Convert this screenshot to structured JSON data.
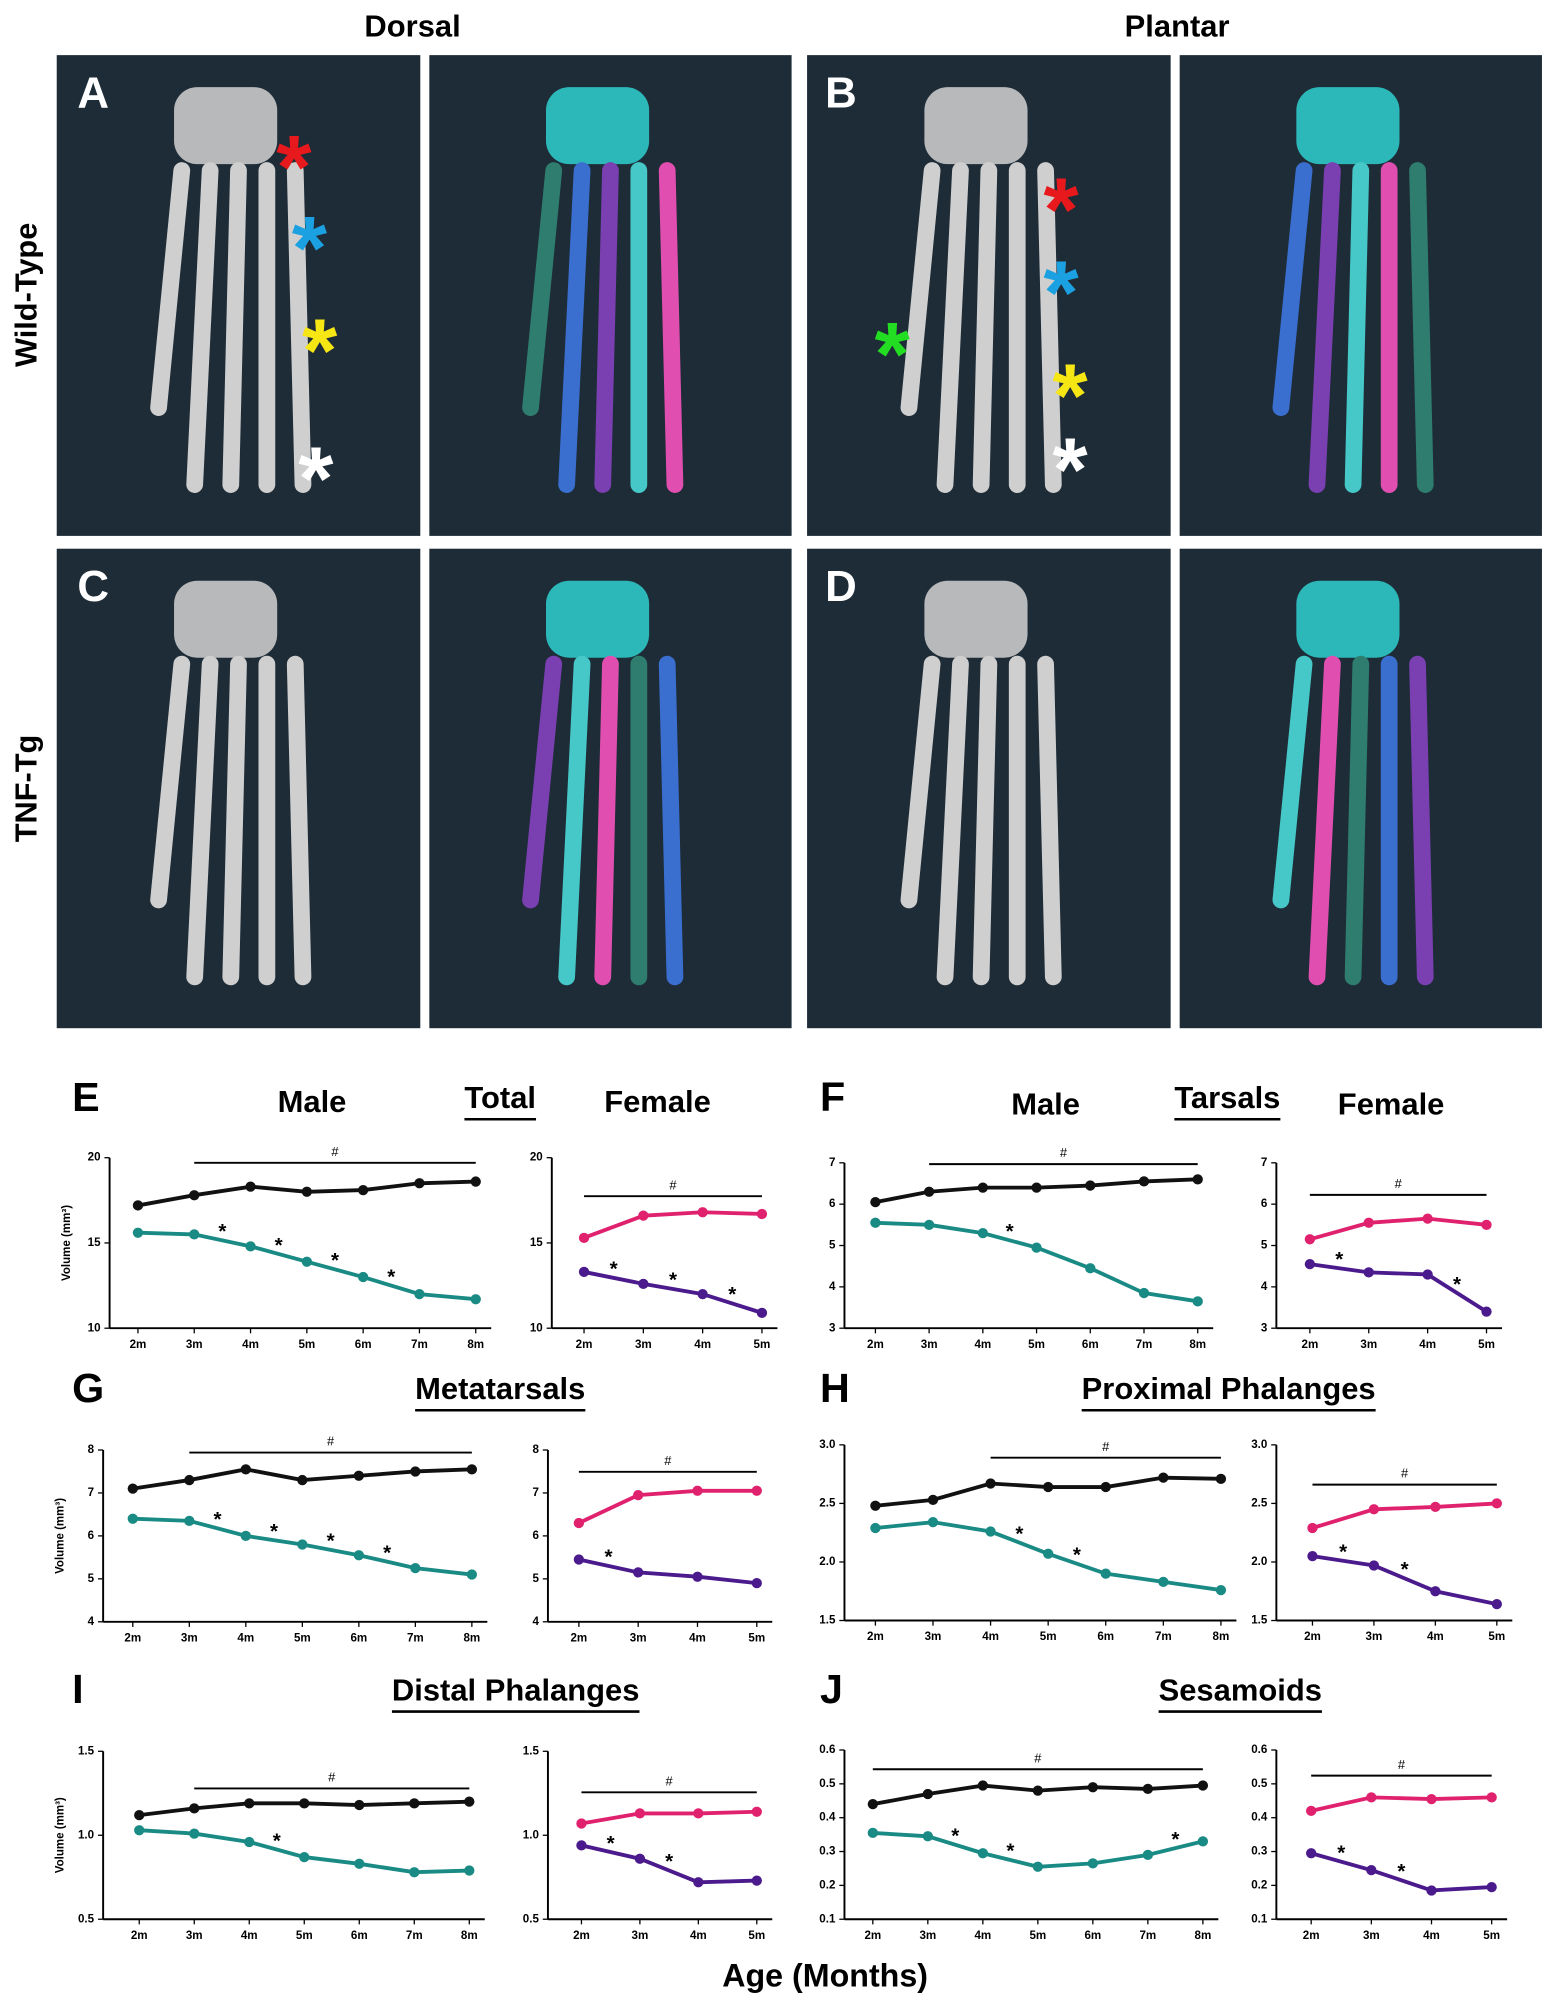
{
  "headers": {
    "dorsal": "Dorsal",
    "plantar": "Plantar",
    "wild_type": "Wild-Type",
    "tnf_tg": "TNF-Tg"
  },
  "panels": [
    {
      "letter": "A",
      "stars": [
        {
          "text": "*",
          "color": "#e8191c"
        },
        {
          "text": "*",
          "color": "#1ba1e2"
        },
        {
          "text": "*",
          "color": "#f5e614"
        },
        {
          "text": "*",
          "color": "#ffffff"
        }
      ]
    },
    {
      "letter": "B",
      "stars": [
        {
          "text": "*",
          "color": "#e8191c"
        },
        {
          "text": "*",
          "color": "#1ba1e2"
        },
        {
          "text": "*",
          "color": "#22dd22"
        },
        {
          "text": "*",
          "color": "#f5e614"
        },
        {
          "text": "*",
          "color": "#ffffff"
        }
      ]
    },
    {
      "letter": "C",
      "stars": []
    },
    {
      "letter": "D",
      "stars": []
    }
  ],
  "sections": [
    {
      "letter": "E",
      "title": "Total"
    },
    {
      "letter": "F",
      "title": "Tarsals"
    },
    {
      "letter": "G",
      "title": "Metatarsals"
    },
    {
      "letter": "H",
      "title": "Proximal Phalanges"
    },
    {
      "letter": "I",
      "title": "Distal Phalanges"
    },
    {
      "letter": "J",
      "title": "Sesamoids"
    }
  ],
  "x_axis_label": "Age (Months)",
  "chart_data": [
    {
      "type": "line",
      "title": "Male",
      "ylabel": "Volume (mm³)",
      "categories": [
        "2m",
        "3m",
        "4m",
        "5m",
        "6m",
        "7m",
        "8m"
      ],
      "ylim": [
        10,
        20
      ],
      "yticks": [
        10,
        15,
        20
      ],
      "series": [
        {
          "color": "#111111",
          "values": [
            17.2,
            17.8,
            18.3,
            18.0,
            18.1,
            18.5,
            18.6
          ]
        },
        {
          "color": "#1a8a84",
          "values": [
            15.6,
            15.5,
            14.8,
            13.9,
            13.0,
            12.0,
            11.7
          ]
        }
      ],
      "sig_bar": {
        "label": "#",
        "from": "3m",
        "to": "8m"
      },
      "stars": [
        {
          "text": "*",
          "after": "3m"
        },
        {
          "text": "*",
          "after": "4m"
        },
        {
          "text": "*",
          "after": "5m"
        },
        {
          "text": "*",
          "after": "6m"
        }
      ]
    },
    {
      "type": "line",
      "title": "Female",
      "categories": [
        "2m",
        "3m",
        "4m",
        "5m"
      ],
      "ylim": [
        10,
        20
      ],
      "yticks": [
        10,
        15,
        20
      ],
      "series": [
        {
          "color": "#e0226e",
          "values": [
            15.3,
            16.6,
            16.8,
            16.7
          ]
        },
        {
          "color": "#4b1a8c",
          "values": [
            13.3,
            12.6,
            12.0,
            10.9
          ]
        }
      ],
      "sig_bar": {
        "label": "#",
        "from": "2m",
        "to": "5m"
      },
      "stars": [
        {
          "text": "*",
          "after": "2m"
        },
        {
          "text": "*",
          "after": "3m"
        },
        {
          "text": "*",
          "after": "4m"
        }
      ]
    },
    {
      "type": "line",
      "title": "Male",
      "categories": [
        "2m",
        "3m",
        "4m",
        "5m",
        "6m",
        "7m",
        "8m"
      ],
      "ylim": [
        3,
        7
      ],
      "yticks": [
        3,
        4,
        5,
        6,
        7
      ],
      "series": [
        {
          "color": "#111111",
          "values": [
            6.05,
            6.3,
            6.4,
            6.4,
            6.45,
            6.55,
            6.6
          ]
        },
        {
          "color": "#1a8a84",
          "values": [
            5.55,
            5.5,
            5.3,
            4.95,
            4.45,
            3.85,
            3.65
          ]
        }
      ],
      "sig_bar": {
        "label": "#",
        "from": "3m",
        "to": "8m"
      },
      "stars": [
        {
          "text": "*",
          "after": "4m"
        }
      ]
    },
    {
      "type": "line",
      "title": "Female",
      "categories": [
        "2m",
        "3m",
        "4m",
        "5m"
      ],
      "ylim": [
        3,
        7
      ],
      "yticks": [
        3,
        4,
        5,
        6,
        7
      ],
      "series": [
        {
          "color": "#e0226e",
          "values": [
            5.15,
            5.55,
            5.65,
            5.5
          ]
        },
        {
          "color": "#4b1a8c",
          "values": [
            4.55,
            4.35,
            4.3,
            3.4
          ]
        }
      ],
      "sig_bar": {
        "label": "#",
        "from": "2m",
        "to": "5m"
      },
      "stars": [
        {
          "text": "*",
          "after": "2m"
        },
        {
          "text": "*",
          "after": "4m"
        }
      ]
    },
    {
      "type": "line",
      "ylabel": "Volume (mm³)",
      "categories": [
        "2m",
        "3m",
        "4m",
        "5m",
        "6m",
        "7m",
        "8m"
      ],
      "ylim": [
        4,
        8
      ],
      "yticks": [
        4,
        5,
        6,
        7,
        8
      ],
      "series": [
        {
          "color": "#111111",
          "values": [
            7.1,
            7.3,
            7.55,
            7.3,
            7.4,
            7.5,
            7.55
          ]
        },
        {
          "color": "#1a8a84",
          "values": [
            6.4,
            6.35,
            6.0,
            5.8,
            5.55,
            5.25,
            5.1
          ]
        }
      ],
      "sig_bar": {
        "label": "#",
        "from": "3m",
        "to": "8m"
      },
      "stars": [
        {
          "text": "*",
          "after": "3m"
        },
        {
          "text": "*",
          "after": "4m"
        },
        {
          "text": "*",
          "after": "5m"
        },
        {
          "text": "*",
          "after": "6m"
        }
      ]
    },
    {
      "type": "line",
      "categories": [
        "2m",
        "3m",
        "4m",
        "5m"
      ],
      "ylim": [
        4,
        8
      ],
      "yticks": [
        4,
        5,
        6,
        7,
        8
      ],
      "series": [
        {
          "color": "#e0226e",
          "values": [
            6.3,
            6.95,
            7.05,
            7.05
          ]
        },
        {
          "color": "#4b1a8c",
          "values": [
            5.45,
            5.15,
            5.05,
            4.9
          ]
        }
      ],
      "sig_bar": {
        "label": "#",
        "from": "2m",
        "to": "5m"
      },
      "stars": [
        {
          "text": "*",
          "after": "2m"
        }
      ]
    },
    {
      "type": "line",
      "categories": [
        "2m",
        "3m",
        "4m",
        "5m",
        "6m",
        "7m",
        "8m"
      ],
      "ylim": [
        1.5,
        3.0
      ],
      "yticks": [
        {
          "value": 1.5,
          "label": "1.5"
        },
        {
          "value": 2.0,
          "label": "2.0"
        },
        {
          "value": 2.5,
          "label": "2.5"
        },
        {
          "value": 3.0,
          "label": "3.0"
        }
      ],
      "series": [
        {
          "color": "#111111",
          "values": [
            2.48,
            2.53,
            2.67,
            2.64,
            2.64,
            2.72,
            2.71
          ]
        },
        {
          "color": "#1a8a84",
          "values": [
            2.29,
            2.34,
            2.26,
            2.07,
            1.9,
            1.83,
            1.76
          ]
        }
      ],
      "sig_bar": {
        "label": "#",
        "from": "4m",
        "to": "8m"
      },
      "stars": [
        {
          "text": "*",
          "after": "4m"
        },
        {
          "text": "*",
          "after": "5m"
        }
      ]
    },
    {
      "type": "line",
      "categories": [
        "2m",
        "3m",
        "4m",
        "5m"
      ],
      "ylim": [
        1.5,
        3.0
      ],
      "yticks": [
        {
          "value": 1.5,
          "label": "1.5"
        },
        {
          "value": 2.0,
          "label": "2.0"
        },
        {
          "value": 2.5,
          "label": "2.5"
        },
        {
          "value": 3.0,
          "label": "3.0"
        }
      ],
      "series": [
        {
          "color": "#e0226e",
          "values": [
            2.29,
            2.45,
            2.47,
            2.5
          ]
        },
        {
          "color": "#4b1a8c",
          "values": [
            2.05,
            1.97,
            1.75,
            1.64
          ]
        }
      ],
      "sig_bar": {
        "label": "#",
        "from": "2m",
        "to": "5m"
      },
      "stars": [
        {
          "text": "*",
          "after": "2m"
        },
        {
          "text": "*",
          "after": "3m"
        }
      ]
    },
    {
      "type": "line",
      "ylabel": "Volume (mm³)",
      "categories": [
        "2m",
        "3m",
        "4m",
        "5m",
        "6m",
        "7m",
        "8m"
      ],
      "ylim": [
        0.5,
        1.5
      ],
      "yticks": [
        0.5,
        {
          "value": 1.0,
          "label": "1.0"
        },
        1.5
      ],
      "series": [
        {
          "color": "#111111",
          "values": [
            1.12,
            1.16,
            1.19,
            1.19,
            1.18,
            1.19,
            1.2
          ]
        },
        {
          "color": "#1a8a84",
          "values": [
            1.03,
            1.01,
            0.96,
            0.87,
            0.83,
            0.78,
            0.79
          ]
        }
      ],
      "sig_bar": {
        "label": "#",
        "from": "3m",
        "to": "8m"
      },
      "stars": [
        {
          "text": "*",
          "after": "4m"
        }
      ]
    },
    {
      "type": "line",
      "categories": [
        "2m",
        "3m",
        "4m",
        "5m"
      ],
      "ylim": [
        0.5,
        1.5
      ],
      "yticks": [
        0.5,
        {
          "value": 1.0,
          "label": "1.0"
        },
        1.5
      ],
      "series": [
        {
          "color": "#e0226e",
          "values": [
            1.07,
            1.13,
            1.13,
            1.14
          ]
        },
        {
          "color": "#4b1a8c",
          "values": [
            0.94,
            0.86,
            0.72,
            0.73
          ]
        }
      ],
      "sig_bar": {
        "label": "#",
        "from": "2m",
        "to": "5m"
      },
      "stars": [
        {
          "text": "*",
          "after": "2m"
        },
        {
          "text": "*",
          "after": "3m"
        }
      ]
    },
    {
      "type": "line",
      "categories": [
        "2m",
        "3m",
        "4m",
        "5m",
        "6m",
        "7m",
        "8m"
      ],
      "ylim": [
        0.1,
        0.6
      ],
      "yticks": [
        0.1,
        0.2,
        0.3,
        0.4,
        0.5,
        0.6
      ],
      "series": [
        {
          "color": "#111111",
          "values": [
            0.44,
            0.47,
            0.495,
            0.48,
            0.49,
            0.485,
            0.495
          ]
        },
        {
          "color": "#1a8a84",
          "values": [
            0.355,
            0.345,
            0.295,
            0.255,
            0.265,
            0.29,
            0.33
          ]
        }
      ],
      "sig_bar": {
        "label": "#",
        "from": "2m",
        "to": "8m"
      },
      "stars": [
        {
          "text": "*",
          "after": "3m"
        },
        {
          "text": "*",
          "after": "4m"
        },
        {
          "text": "*",
          "after": "7m"
        }
      ]
    },
    {
      "type": "line",
      "categories": [
        "2m",
        "3m",
        "4m",
        "5m"
      ],
      "ylim": [
        0.1,
        0.6
      ],
      "yticks": [
        0.1,
        0.2,
        0.3,
        0.4,
        0.5,
        0.6
      ],
      "series": [
        {
          "color": "#e0226e",
          "values": [
            0.42,
            0.46,
            0.455,
            0.46
          ]
        },
        {
          "color": "#4b1a8c",
          "values": [
            0.295,
            0.245,
            0.185,
            0.195
          ]
        }
      ],
      "sig_bar": {
        "label": "#",
        "from": "2m",
        "to": "5m"
      },
      "stars": [
        {
          "text": "*",
          "after": "2m"
        },
        {
          "text": "*",
          "after": "3m"
        }
      ]
    }
  ]
}
